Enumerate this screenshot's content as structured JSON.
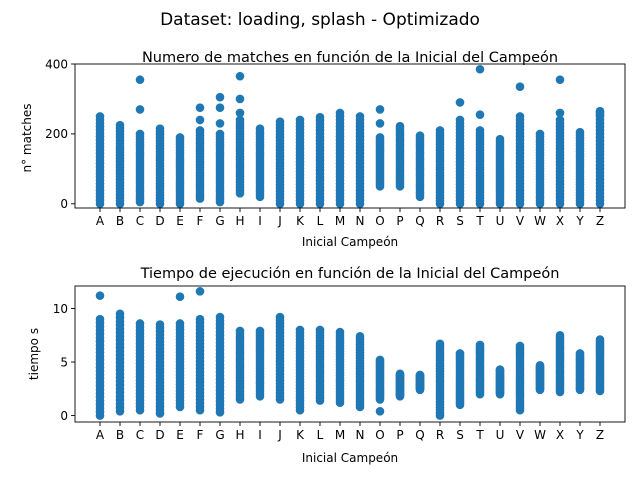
{
  "suptitle": "Dataset: loading, splash - Optimizado",
  "chart_data": [
    {
      "type": "scatter",
      "title": "Numero de matches en función de la Inicial del Campeón",
      "xlabel": "Inicial Campeón",
      "ylabel": "n° matches",
      "categories": [
        "A",
        "B",
        "C",
        "D",
        "E",
        "F",
        "G",
        "H",
        "I",
        "J",
        "K",
        "L",
        "M",
        "N",
        "O",
        "P",
        "Q",
        "R",
        "S",
        "T",
        "U",
        "V",
        "W",
        "X",
        "Y",
        "Z"
      ],
      "yticks": [
        0,
        200,
        400
      ],
      "ylim": [
        -12,
        400
      ],
      "grid": false,
      "color": "#1f77b4",
      "ranges": [
        [
          0,
          250
        ],
        [
          0,
          225
        ],
        [
          5,
          200
        ],
        [
          0,
          215
        ],
        [
          0,
          190
        ],
        [
          15,
          210
        ],
        [
          5,
          200
        ],
        [
          30,
          240
        ],
        [
          20,
          215
        ],
        [
          0,
          235
        ],
        [
          0,
          240
        ],
        [
          0,
          248
        ],
        [
          0,
          250
        ],
        [
          0,
          250
        ],
        [
          50,
          190
        ],
        [
          50,
          222
        ],
        [
          20,
          195
        ],
        [
          0,
          210
        ],
        [
          0,
          240
        ],
        [
          0,
          210
        ],
        [
          0,
          185
        ],
        [
          0,
          250
        ],
        [
          0,
          200
        ],
        [
          0,
          240
        ],
        [
          0,
          205
        ],
        [
          0,
          260
        ]
      ],
      "outliers": [
        [],
        [],
        [
          355,
          270
        ],
        [],
        [],
        [
          275,
          240
        ],
        [
          305,
          275,
          230
        ],
        [
          365,
          300,
          260
        ],
        [],
        [],
        [],
        [],
        [
          260
        ],
        [],
        [
          270,
          230
        ],
        [],
        [],
        [],
        [
          290
        ],
        [
          385,
          255
        ],
        [],
        [
          335
        ],
        [],
        [
          355,
          260
        ],
        [],
        [
          265,
          255
        ]
      ]
    },
    {
      "type": "scatter",
      "title": "Tiempo de ejecución en función de la Inicial del Campeón",
      "xlabel": "Inicial Campeón",
      "ylabel": "tiempo s",
      "categories": [
        "A",
        "B",
        "C",
        "D",
        "E",
        "F",
        "G",
        "H",
        "I",
        "J",
        "K",
        "L",
        "M",
        "N",
        "O",
        "P",
        "Q",
        "R",
        "S",
        "T",
        "U",
        "V",
        "W",
        "X",
        "Y",
        "Z"
      ],
      "yticks": [
        0,
        5,
        10
      ],
      "ylim": [
        -0.6,
        12.1
      ],
      "grid": false,
      "color": "#1f77b4",
      "ranges": [
        [
          0,
          9
        ],
        [
          0.4,
          9.5
        ],
        [
          0.5,
          8.6
        ],
        [
          0.2,
          8.5
        ],
        [
          0.8,
          8.6
        ],
        [
          0.5,
          9
        ],
        [
          0.3,
          9.2
        ],
        [
          1.5,
          7.9
        ],
        [
          1.8,
          7.9
        ],
        [
          1.5,
          9.2
        ],
        [
          0.5,
          8
        ],
        [
          1.4,
          8
        ],
        [
          1.2,
          7.8
        ],
        [
          0.8,
          7.4
        ],
        [
          1.5,
          5.2
        ],
        [
          1.8,
          3.9
        ],
        [
          2.4,
          3.8
        ],
        [
          0,
          6.7
        ],
        [
          1,
          5.8
        ],
        [
          2,
          6.6
        ],
        [
          2,
          4.3
        ],
        [
          0.5,
          6.5
        ],
        [
          2.4,
          4.7
        ],
        [
          2.2,
          7.5
        ],
        [
          2.4,
          5.8
        ],
        [
          2.3,
          7.1
        ]
      ],
      "outliers": [
        [
          11.2
        ],
        [],
        [],
        [],
        [
          11.1
        ],
        [
          11.6
        ],
        [],
        [],
        [],
        [],
        [],
        [],
        [],
        [],
        [
          0.4
        ],
        [],
        [],
        [],
        [],
        [],
        [],
        [],
        [],
        [],
        [],
        []
      ]
    }
  ]
}
